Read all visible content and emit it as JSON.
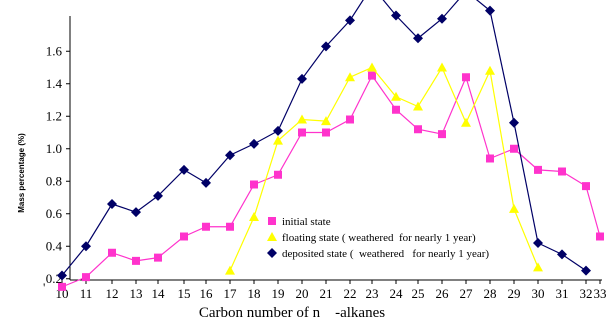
{
  "chart_data": {
    "type": "line",
    "xlabel": "Carbon number of n    -alkanes",
    "ylabel": "Mass percentage (%)",
    "ylim": [
      0.1,
      1.8
    ],
    "xlim": [
      9.5,
      35.5
    ],
    "y_ticks": [
      "0.2",
      "0.4",
      "0.6",
      "0.8",
      "1.0",
      "1.2",
      "1.4",
      "1.6"
    ],
    "x_tick_labels": [
      "10",
      "11",
      "12",
      "13",
      "14",
      "15",
      "16",
      "17",
      "18",
      "19",
      "20",
      "21",
      "22",
      "23",
      "24",
      "25",
      "26",
      "27",
      "28",
      "29",
      "30",
      "31",
      "32",
      "33"
    ],
    "stray_mark": "'",
    "grid": false,
    "legend_position": "bottom-center",
    "series": [
      {
        "name": "initial state",
        "color": "#ff33cc",
        "marker": "square",
        "points": [
          [
            10,
            0.15
          ],
          [
            11,
            0.21
          ],
          [
            12,
            0.36
          ],
          [
            13,
            0.31
          ],
          [
            14,
            0.33
          ],
          [
            15,
            0.46
          ],
          [
            16,
            0.52
          ],
          [
            17,
            0.52
          ],
          [
            18,
            0.78
          ],
          [
            19,
            0.84
          ],
          [
            20,
            1.1
          ],
          [
            21,
            1.1
          ],
          [
            22,
            1.18
          ],
          [
            23,
            1.45
          ],
          [
            24,
            1.24
          ],
          [
            25,
            1.12
          ],
          [
            26,
            1.09
          ],
          [
            27,
            1.44
          ],
          [
            28,
            0.94
          ],
          [
            29,
            1.0
          ],
          [
            30,
            0.87
          ],
          [
            31,
            0.86
          ],
          [
            32,
            0.77
          ],
          [
            33,
            0.46
          ]
        ],
        "_note_x": "x values index the plotted positions 10..33 left to right"
      }
    ]
  }
}
